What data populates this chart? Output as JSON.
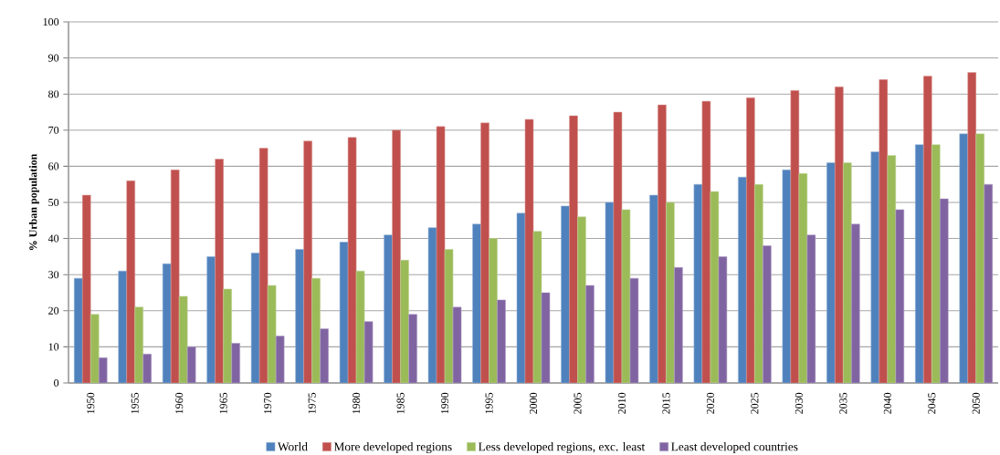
{
  "chart_data": {
    "type": "bar",
    "ylabel": "% Urban population",
    "categories": [
      "1950",
      "1955",
      "1960",
      "1965",
      "1970",
      "1975",
      "1980",
      "1985",
      "1990",
      "1995",
      "2000",
      "2005",
      "2010",
      "2015",
      "2020",
      "2025",
      "2030",
      "2035",
      "2040",
      "2045",
      "2050"
    ],
    "series": [
      {
        "name": "World",
        "color": "#4f81bd",
        "values": [
          29,
          31,
          33,
          35,
          36,
          37,
          39,
          41,
          43,
          44,
          47,
          49,
          50,
          52,
          55,
          57,
          59,
          61,
          64,
          66,
          69
        ]
      },
      {
        "name": "More developed regions",
        "color": "#c0504d",
        "values": [
          52,
          56,
          59,
          62,
          65,
          67,
          68,
          70,
          71,
          72,
          73,
          74,
          75,
          77,
          78,
          79,
          81,
          82,
          84,
          85,
          86
        ]
      },
      {
        "name": "Less developed regions, exc. least",
        "color": "#9bbb59",
        "values": [
          19,
          21,
          24,
          26,
          27,
          29,
          31,
          34,
          37,
          40,
          42,
          46,
          48,
          50,
          53,
          55,
          58,
          61,
          63,
          66,
          69
        ]
      },
      {
        "name": "Least developed countries",
        "color": "#8064a2",
        "values": [
          7,
          8,
          10,
          11,
          13,
          15,
          17,
          19,
          21,
          23,
          25,
          27,
          29,
          32,
          35,
          38,
          41,
          44,
          48,
          51,
          55
        ]
      }
    ],
    "ylim": [
      0,
      100
    ],
    "yticks": [
      0,
      10,
      20,
      30,
      40,
      50,
      60,
      70,
      80,
      90,
      100
    ],
    "grid": "y",
    "legend": "bottom"
  }
}
